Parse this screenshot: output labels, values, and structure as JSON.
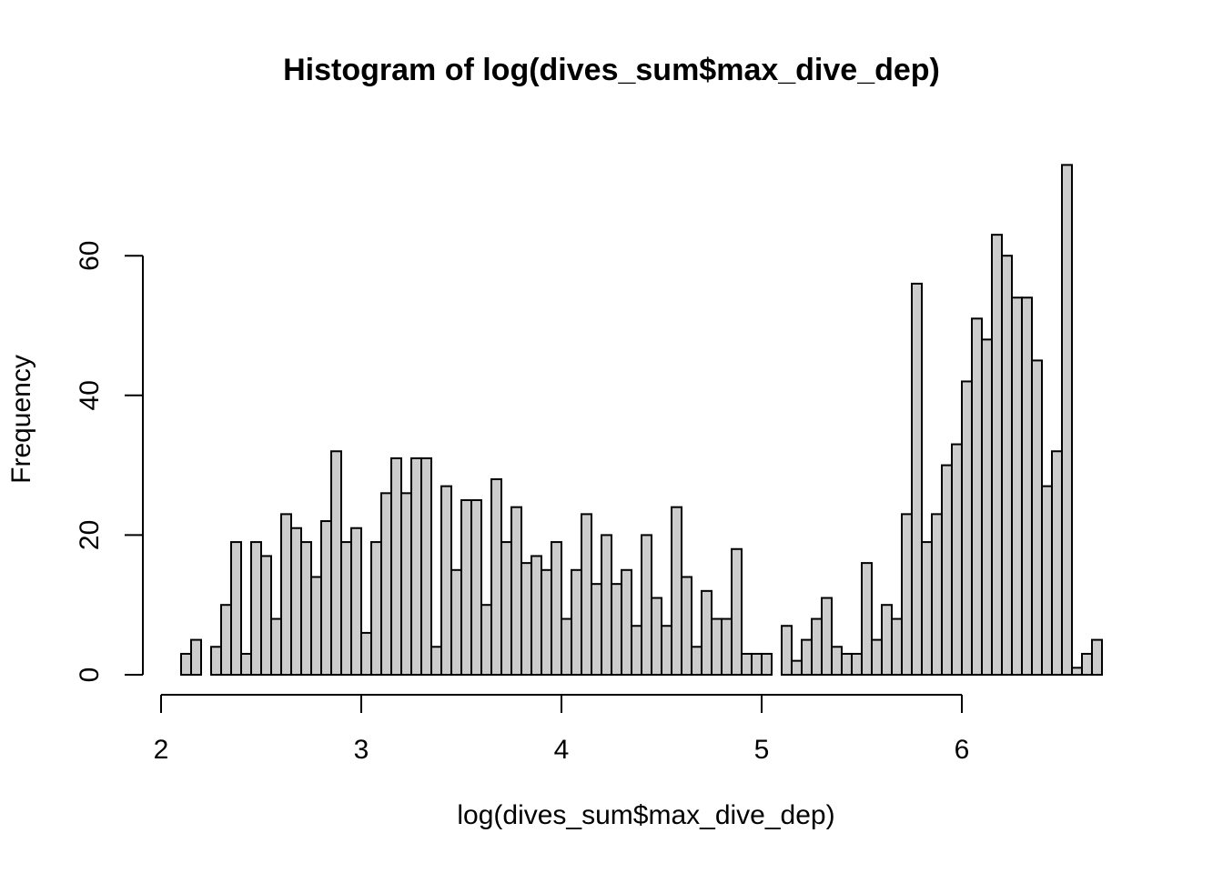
{
  "chart_data": {
    "type": "bar",
    "title": "Histogram of log(dives_sum$max_dive_dep)",
    "xlabel": "log(dives_sum$max_dive_dep)",
    "ylabel": "Frequency",
    "bin_width": 0.05,
    "bin_start": 2.1,
    "xlim": [
      2,
      6.75
    ],
    "ylim": [
      0,
      75
    ],
    "x_ticks": [
      "2",
      "3",
      "4",
      "5",
      "6"
    ],
    "y_ticks": [
      "0",
      "20",
      "40",
      "60"
    ],
    "bar_fill": "#cccccc",
    "bar_stroke": "#000000",
    "values": [
      3,
      5,
      0,
      4,
      10,
      19,
      3,
      19,
      17,
      8,
      23,
      21,
      19,
      14,
      22,
      32,
      19,
      21,
      6,
      19,
      26,
      31,
      26,
      31,
      31,
      4,
      27,
      15,
      25,
      25,
      10,
      28,
      19,
      24,
      16,
      17,
      15,
      19,
      8,
      15,
      23,
      13,
      20,
      13,
      15,
      7,
      20,
      11,
      7,
      24,
      14,
      4,
      12,
      8,
      8,
      18,
      3,
      3,
      3,
      0,
      7,
      2,
      5,
      8,
      11,
      4,
      3,
      3,
      16,
      5,
      10,
      8,
      23,
      56,
      19,
      23,
      30,
      33,
      42,
      51,
      48,
      63,
      60,
      54,
      54,
      45,
      27,
      32,
      73,
      1,
      3,
      5
    ]
  }
}
